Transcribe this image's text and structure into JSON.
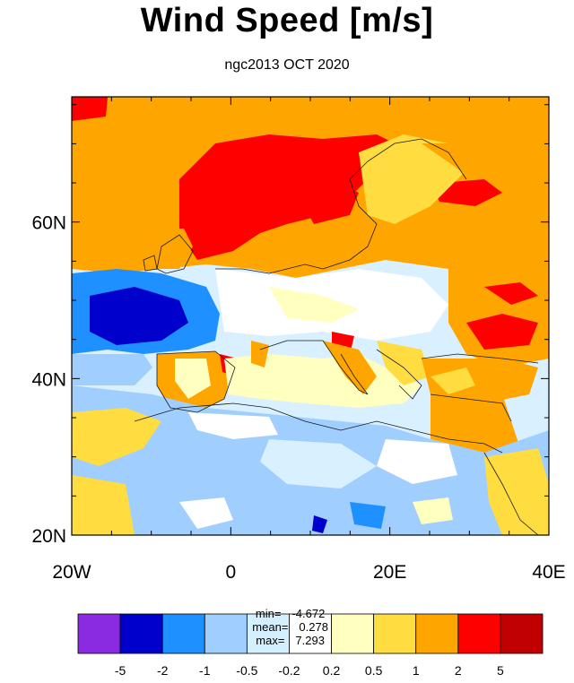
{
  "title": "Wind Speed [m/s]",
  "subtitle": "ngc2013 OCT 2020",
  "map": {
    "lon_range": [
      -20,
      40
    ],
    "lat_range": [
      20,
      76
    ],
    "x_tick_labels": [
      {
        "lon": -20,
        "label": "20W"
      },
      {
        "lon": 0,
        "label": "0"
      },
      {
        "lon": 20,
        "label": "20E"
      },
      {
        "lon": 40,
        "label": "40E"
      }
    ],
    "y_tick_labels": [
      {
        "lat": 20,
        "label": "20N"
      },
      {
        "lat": 40,
        "label": "40N"
      },
      {
        "lat": 60,
        "label": "60N"
      }
    ]
  },
  "stats": {
    "min_label": "min=",
    "min_value": "-4.672",
    "mean_label": "mean=",
    "mean_value": "0.278",
    "max_label": "max=",
    "max_value": "7.293"
  },
  "colorbar": {
    "colors": [
      "#8a2be2",
      "#0000cd",
      "#1e90ff",
      "#a0cfff",
      "#d4f0ff",
      "#ffffff",
      "#ffffc0",
      "#ffdc40",
      "#ffa500",
      "#ff0000",
      "#c00000"
    ],
    "labels": [
      "-5",
      "-2",
      "-1",
      "-0.5",
      "-0.2",
      "0.2",
      "0.5",
      "1",
      "2",
      "5"
    ]
  }
}
